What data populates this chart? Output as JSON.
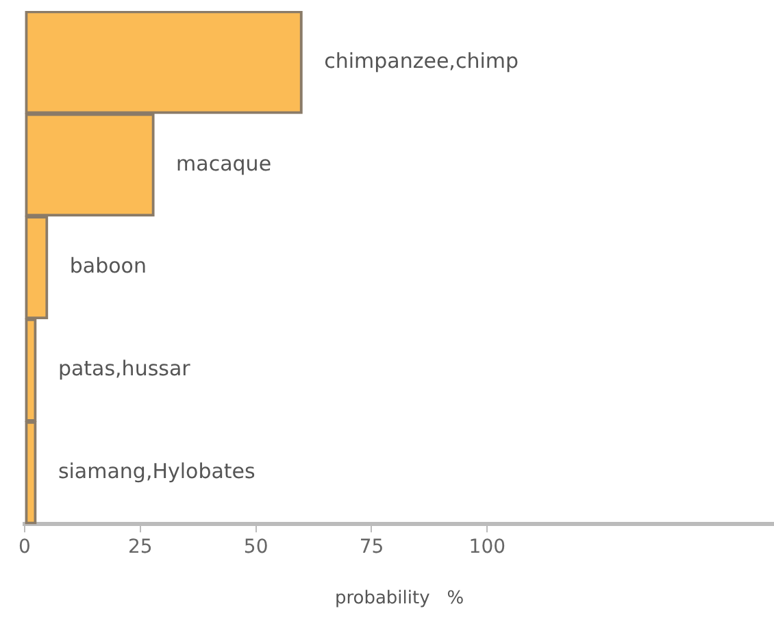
{
  "chart_data": {
    "type": "bar",
    "orientation": "horizontal",
    "categories": [
      "chimpanzee,chimp",
      "macaque",
      "baboon",
      "patas,hussar",
      "siamang,Hylobates"
    ],
    "values": [
      60,
      28,
      5,
      2.5,
      2.5
    ],
    "color": "#fbbb55",
    "xlabel": "probability   %",
    "xlim": [
      0,
      162
    ],
    "xticks": [
      0,
      25,
      50,
      75,
      100
    ],
    "grid": false,
    "legend": false
  }
}
